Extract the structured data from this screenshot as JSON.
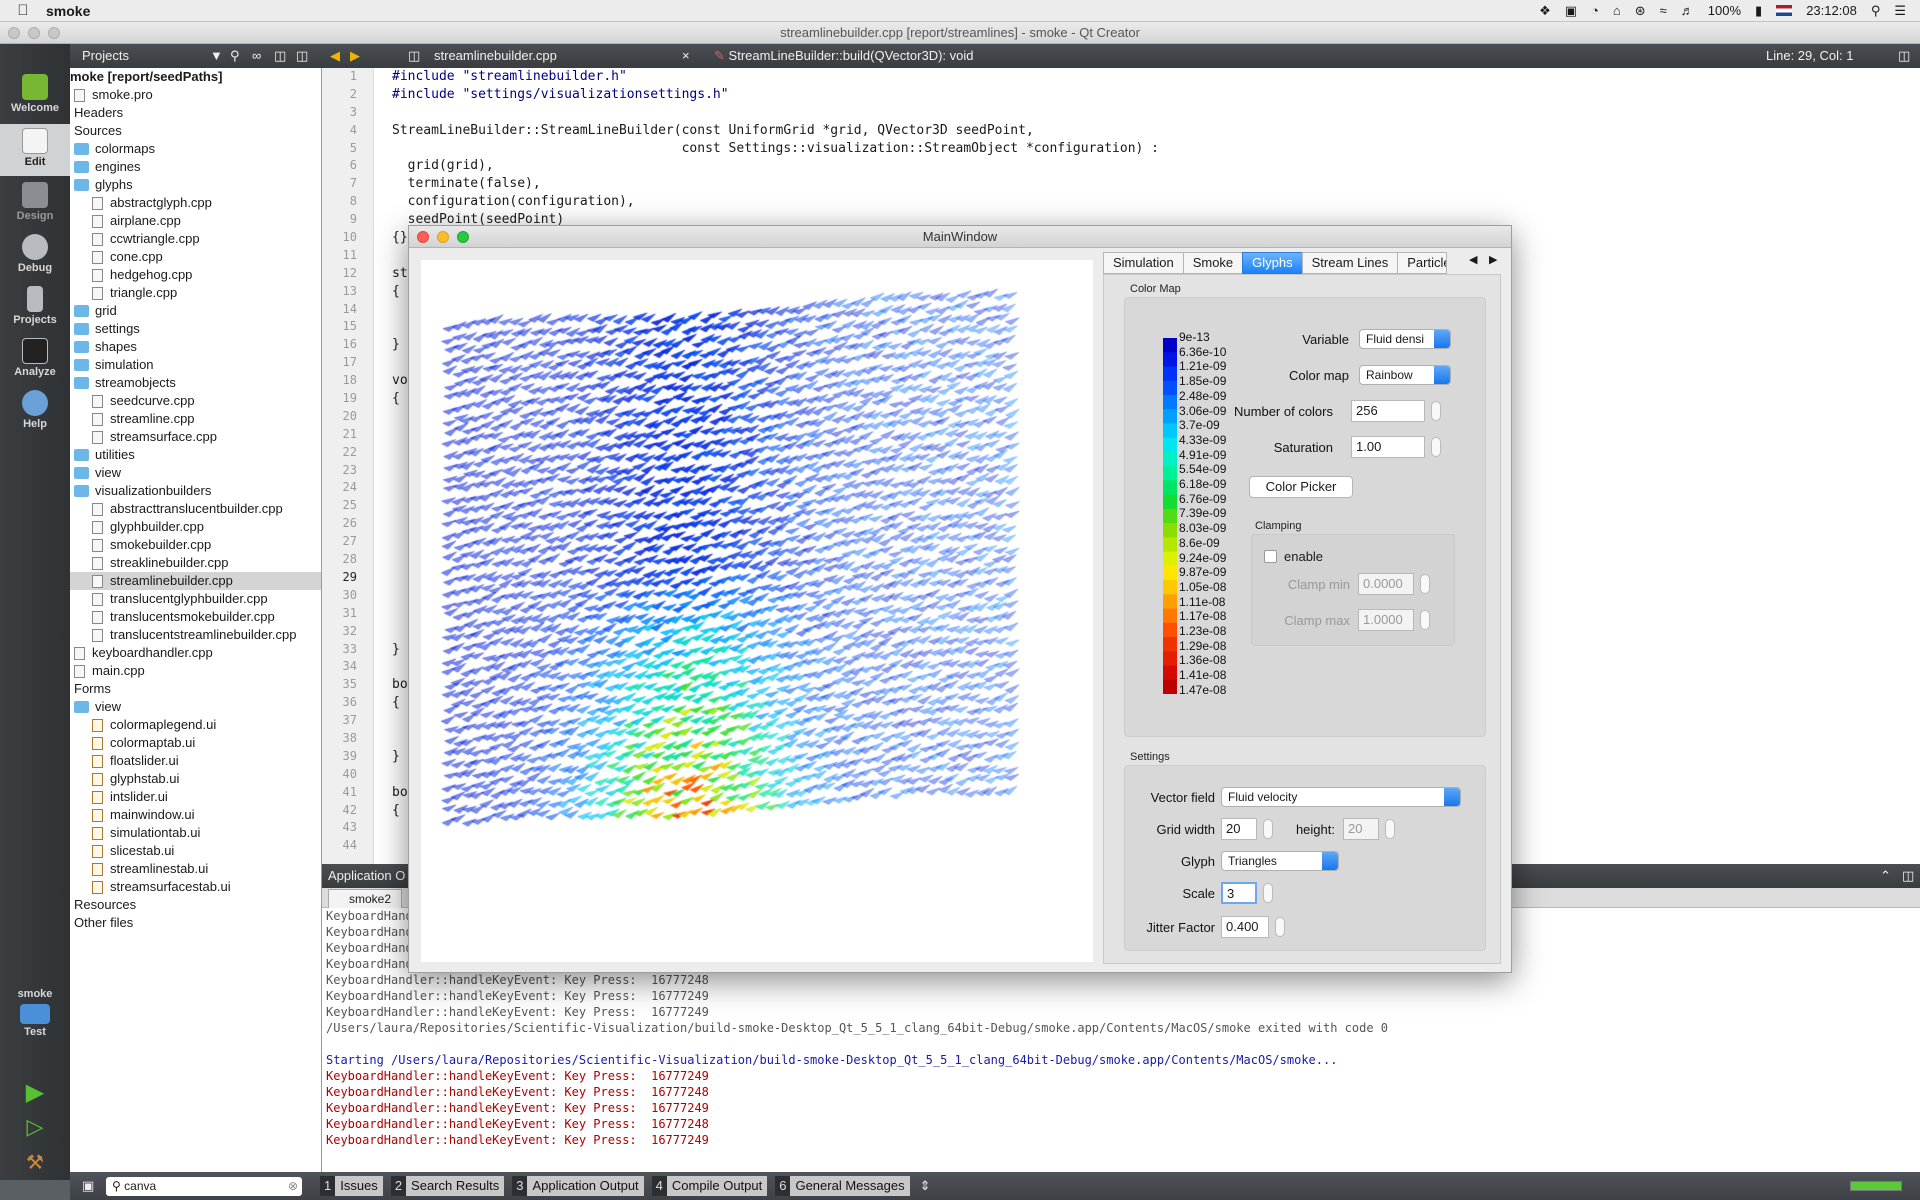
{
  "menubar": {
    "app_name": "smoke",
    "battery": "100%",
    "time": "23:12:08"
  },
  "qt_title": "streamlinebuilder.cpp [report/streamlines] - smoke - Qt Creator",
  "modes": [
    {
      "label": "Welcome"
    },
    {
      "label": "Edit"
    },
    {
      "label": "Design"
    },
    {
      "label": "Debug"
    },
    {
      "label": "Projects"
    },
    {
      "label": "Analyze"
    },
    {
      "label": "Help"
    }
  ],
  "kit": {
    "project": "smoke",
    "config": "Test"
  },
  "projects": {
    "header": "Projects",
    "tree": [
      {
        "t": "moke [report/seedPaths]",
        "k": "root",
        "d": 0
      },
      {
        "t": "smoke.pro",
        "k": "file",
        "d": 0
      },
      {
        "t": "Headers",
        "k": "none",
        "d": 0
      },
      {
        "t": "Sources",
        "k": "none",
        "d": 0
      },
      {
        "t": "colormaps",
        "k": "folder",
        "d": 0
      },
      {
        "t": "engines",
        "k": "folder",
        "d": 0
      },
      {
        "t": "glyphs",
        "k": "folder",
        "d": 0
      },
      {
        "t": "abstractglyph.cpp",
        "k": "file",
        "d": 1
      },
      {
        "t": "airplane.cpp",
        "k": "file",
        "d": 1
      },
      {
        "t": "ccwtriangle.cpp",
        "k": "file",
        "d": 1
      },
      {
        "t": "cone.cpp",
        "k": "file",
        "d": 1
      },
      {
        "t": "hedgehog.cpp",
        "k": "file",
        "d": 1
      },
      {
        "t": "triangle.cpp",
        "k": "file",
        "d": 1
      },
      {
        "t": "grid",
        "k": "folder",
        "d": 0
      },
      {
        "t": "settings",
        "k": "folder",
        "d": 0
      },
      {
        "t": "shapes",
        "k": "folder",
        "d": 0
      },
      {
        "t": "simulation",
        "k": "folder",
        "d": 0
      },
      {
        "t": "streamobjects",
        "k": "folder",
        "d": 0
      },
      {
        "t": "seedcurve.cpp",
        "k": "file",
        "d": 1
      },
      {
        "t": "streamline.cpp",
        "k": "file",
        "d": 1
      },
      {
        "t": "streamsurface.cpp",
        "k": "file",
        "d": 1
      },
      {
        "t": "utilities",
        "k": "folder",
        "d": 0
      },
      {
        "t": "view",
        "k": "folder",
        "d": 0
      },
      {
        "t": "visualizationbuilders",
        "k": "folder",
        "d": 0
      },
      {
        "t": "abstracttranslucentbuilder.cpp",
        "k": "file",
        "d": 1
      },
      {
        "t": "glyphbuilder.cpp",
        "k": "file",
        "d": 1
      },
      {
        "t": "smokebuilder.cpp",
        "k": "file",
        "d": 1
      },
      {
        "t": "streaklinebuilder.cpp",
        "k": "file",
        "d": 1
      },
      {
        "t": "streamlinebuilder.cpp",
        "k": "file",
        "d": 1,
        "sel": true
      },
      {
        "t": "translucentglyphbuilder.cpp",
        "k": "file",
        "d": 1
      },
      {
        "t": "translucentsmokebuilder.cpp",
        "k": "file",
        "d": 1
      },
      {
        "t": "translucentstreamlinebuilder.cpp",
        "k": "file",
        "d": 1
      },
      {
        "t": "keyboardhandler.cpp",
        "k": "file",
        "d": 0
      },
      {
        "t": "main.cpp",
        "k": "file",
        "d": 0
      },
      {
        "t": "Forms",
        "k": "none",
        "d": 0
      },
      {
        "t": "view",
        "k": "folder",
        "d": 0
      },
      {
        "t": "colormaplegend.ui",
        "k": "ui",
        "d": 1
      },
      {
        "t": "colormaptab.ui",
        "k": "ui",
        "d": 1
      },
      {
        "t": "floatslider.ui",
        "k": "ui",
        "d": 1
      },
      {
        "t": "glyphstab.ui",
        "k": "ui",
        "d": 1
      },
      {
        "t": "intslider.ui",
        "k": "ui",
        "d": 1
      },
      {
        "t": "mainwindow.ui",
        "k": "ui",
        "d": 1
      },
      {
        "t": "simulationtab.ui",
        "k": "ui",
        "d": 1
      },
      {
        "t": "slicestab.ui",
        "k": "ui",
        "d": 1
      },
      {
        "t": "streamlinestab.ui",
        "k": "ui",
        "d": 1
      },
      {
        "t": "streamsurfacestab.ui",
        "k": "ui",
        "d": 1
      },
      {
        "t": "Resources",
        "k": "none",
        "d": 0
      },
      {
        "t": "Other files",
        "k": "none",
        "d": 0
      }
    ]
  },
  "editor": {
    "file_tab": "streamlinebuilder.cpp",
    "symbol": "StreamLineBuilder::build(QVector3D): void",
    "position": "Line: 29, Col: 1",
    "line_numbers": [
      "1",
      "2",
      "3",
      "4",
      "5",
      "6",
      "7",
      "8",
      "9",
      "10",
      "11",
      "12",
      "13",
      "14",
      "15",
      "16",
      "17",
      "18",
      "19",
      "20",
      "21",
      "22",
      "23",
      "24",
      "25",
      "26",
      "27",
      "28",
      "29",
      "30",
      "31",
      "32",
      "33",
      "34",
      "35",
      "36",
      "37",
      "38",
      "39",
      "40",
      "41",
      "42",
      "43",
      "44"
    ],
    "code_lines": [
      "#include \"streamlinebuilder.h\"",
      "#include \"settings/visualizationsettings.h\"",
      "",
      "StreamLineBuilder::StreamLineBuilder(const UniformGrid *grid, QVector3D seedPoint,",
      "                                     const Settings::visualization::StreamObject *configuration) :",
      "  grid(grid),",
      "  terminate(false),",
      "  configuration(configuration),",
      "  seedPoint(seedPoint)",
      "{}",
      "",
      "st",
      "{",
      "",
      "",
      "}",
      "",
      "vo",
      "{",
      "",
      "",
      "",
      "",
      "",
      "",
      "",
      "",
      "",
      "",
      "",
      "",
      "",
      "}",
      "",
      "bo",
      "{",
      "",
      "",
      "}",
      "",
      "bo",
      "{",
      "",
      ""
    ]
  },
  "output": {
    "header": "Application O",
    "tab": "smoke2",
    "lines": [
      {
        "t": "KeyboardHand",
        "c": "gray"
      },
      {
        "t": "KeyboardHand",
        "c": "gray"
      },
      {
        "t": "KeyboardHand",
        "c": "gray"
      },
      {
        "t": "KeyboardHand",
        "c": "gray"
      },
      {
        "t": "KeyboardHandler::handleKeyEvent: Key Press:  16777248",
        "c": "gray"
      },
      {
        "t": "KeyboardHandler::handleKeyEvent: Key Press:  16777249",
        "c": "gray"
      },
      {
        "t": "KeyboardHandler::handleKeyEvent: Key Press:  16777249",
        "c": "gray"
      },
      {
        "t": "/Users/laura/Repositories/Scientific-Visualization/build-smoke-Desktop_Qt_5_5_1_clang_64bit-Debug/smoke.app/Contents/MacOS/smoke exited with code 0",
        "c": "gray"
      },
      {
        "t": "",
        "c": "gray"
      },
      {
        "t": "Starting /Users/laura/Repositories/Scientific-Visualization/build-smoke-Desktop_Qt_5_5_1_clang_64bit-Debug/smoke.app/Contents/MacOS/smoke...",
        "c": "blue"
      },
      {
        "t": "KeyboardHandler::handleKeyEvent: Key Press:  16777249",
        "c": "red"
      },
      {
        "t": "KeyboardHandler::handleKeyEvent: Key Press:  16777248",
        "c": "red"
      },
      {
        "t": "KeyboardHandler::handleKeyEvent: Key Press:  16777249",
        "c": "red"
      },
      {
        "t": "KeyboardHandler::handleKeyEvent: Key Press:  16777248",
        "c": "red"
      },
      {
        "t": "KeyboardHandler::handleKeyEvent: Key Press:  16777249",
        "c": "red"
      }
    ]
  },
  "bottom": {
    "search": "canva",
    "tabs": [
      {
        "n": "1",
        "l": "Issues"
      },
      {
        "n": "2",
        "l": "Search Results"
      },
      {
        "n": "3",
        "l": "Application Output"
      },
      {
        "n": "4",
        "l": "Compile Output"
      },
      {
        "n": "6",
        "l": "General Messages"
      }
    ]
  },
  "mainwindow": {
    "title": "MainWindow",
    "tabs": [
      "Simulation",
      "Smoke",
      "Glyphs",
      "Stream Lines",
      "Particle"
    ],
    "active_tab": "Glyphs",
    "color_map": {
      "group_label": "Color Map",
      "legend": [
        "9e-13",
        "6.36e-10",
        "1.21e-09",
        "1.85e-09",
        "2.48e-09",
        "3.06e-09",
        "3.7e-09",
        "4.33e-09",
        "4.91e-09",
        "5.54e-09",
        "6.18e-09",
        "6.76e-09",
        "7.39e-09",
        "8.03e-09",
        "8.6e-09",
        "9.24e-09",
        "9.87e-09",
        "1.05e-08",
        "1.11e-08",
        "1.17e-08",
        "1.23e-08",
        "1.29e-08",
        "1.36e-08",
        "1.41e-08",
        "1.47e-08"
      ],
      "variable_label": "Variable",
      "variable_value": "Fluid densi",
      "colormap_label": "Color map",
      "colormap_value": "Rainbow",
      "ncolors_label": "Number of colors",
      "ncolors_value": "256",
      "saturation_label": "Saturation",
      "saturation_value": "1.00",
      "picker_button": "Color Picker",
      "clamping_label": "Clamping",
      "enable_label": "enable",
      "clamp_min_label": "Clamp min",
      "clamp_min_value": "0.0000",
      "clamp_max_label": "Clamp max",
      "clamp_max_value": "1.0000"
    },
    "settings": {
      "group_label": "Settings",
      "vector_field_label": "Vector field",
      "vector_field_value": "Fluid velocity",
      "grid_width_label": "Grid width",
      "grid_width_value": "20",
      "height_label": "height:",
      "height_value": "20",
      "glyph_label": "Glyph",
      "glyph_value": "Triangles",
      "scale_label": "Scale",
      "scale_value": "3",
      "jitter_label": "Jitter Factor",
      "jitter_value": "0.400"
    }
  }
}
